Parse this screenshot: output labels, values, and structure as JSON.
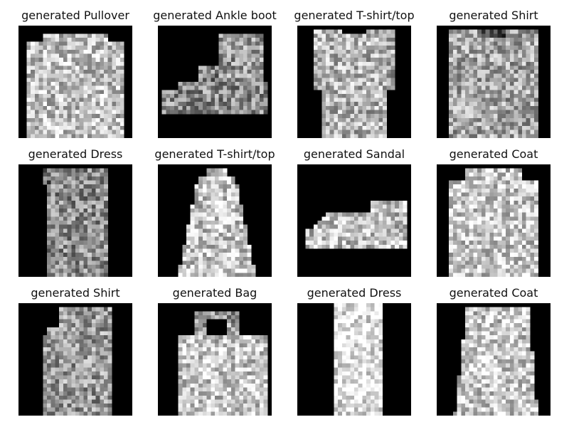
{
  "figure": {
    "background": "#ffffff",
    "image_background": "#000000",
    "cells": [
      {
        "label": "generated Pullover",
        "shape": "pullover"
      },
      {
        "label": "generated Ankle boot",
        "shape": "ankle-boot"
      },
      {
        "label": "generated T-shirt/top",
        "shape": "tshirt-wide"
      },
      {
        "label": "generated Shirt",
        "shape": "shirt"
      },
      {
        "label": "generated Dress",
        "shape": "dress"
      },
      {
        "label": "generated T-shirt/top",
        "shape": "tshirt-narrow"
      },
      {
        "label": "generated Sandal",
        "shape": "sandal"
      },
      {
        "label": "generated Coat",
        "shape": "coat"
      },
      {
        "label": "generated Shirt",
        "shape": "shirt-narrow"
      },
      {
        "label": "generated Bag",
        "shape": "bag"
      },
      {
        "label": "generated Dress",
        "shape": "dress-light"
      },
      {
        "label": "generated Coat",
        "shape": "coat-light"
      }
    ]
  }
}
